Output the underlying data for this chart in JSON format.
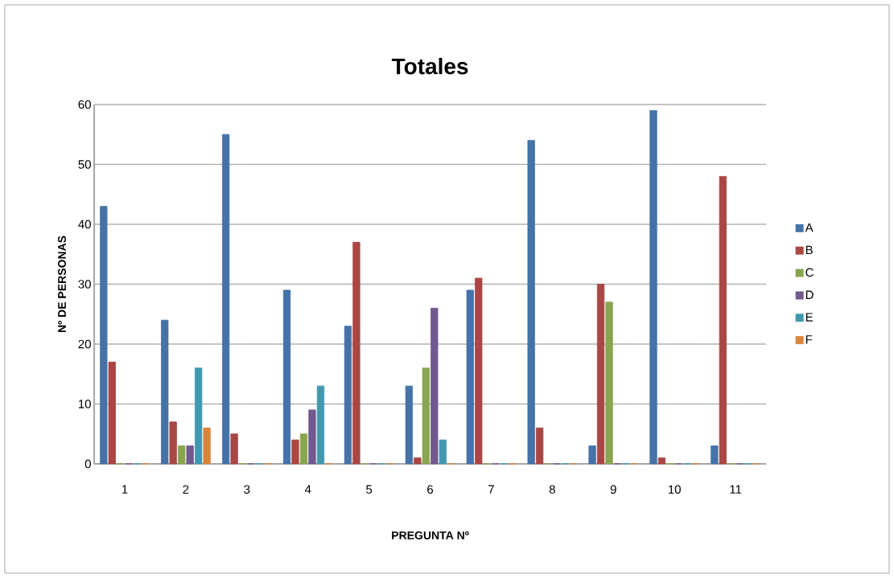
{
  "chart_data": {
    "type": "bar",
    "title": "Totales",
    "xlabel": "PREGUNTA Nº",
    "ylabel": "Nº DE PERSONAS",
    "categories": [
      "1",
      "2",
      "3",
      "4",
      "5",
      "6",
      "7",
      "8",
      "9",
      "10",
      "11"
    ],
    "series": [
      {
        "name": "A",
        "color": "#4572a7",
        "values": [
          43,
          24,
          55,
          29,
          23,
          13,
          29,
          54,
          3,
          59,
          3
        ]
      },
      {
        "name": "B",
        "color": "#aa4643",
        "values": [
          17,
          7,
          5,
          4,
          37,
          1,
          31,
          6,
          30,
          1,
          48
        ]
      },
      {
        "name": "C",
        "color": "#89a54e",
        "values": [
          0,
          3,
          0,
          5,
          0,
          16,
          0,
          0,
          27,
          0,
          0
        ]
      },
      {
        "name": "D",
        "color": "#71588f",
        "values": [
          0,
          3,
          0,
          9,
          0,
          26,
          0,
          0,
          0,
          0,
          0
        ]
      },
      {
        "name": "E",
        "color": "#4198af",
        "values": [
          0,
          16,
          0,
          13,
          0,
          4,
          0,
          0,
          0,
          0,
          0
        ]
      },
      {
        "name": "F",
        "color": "#db843d",
        "values": [
          0,
          6,
          0,
          0,
          0,
          0,
          0,
          0,
          0,
          0,
          0
        ]
      }
    ],
    "ylim": [
      0,
      60
    ],
    "yticks": [
      0,
      10,
      20,
      30,
      40,
      50,
      60
    ],
    "grid": "y",
    "legend": "right"
  }
}
